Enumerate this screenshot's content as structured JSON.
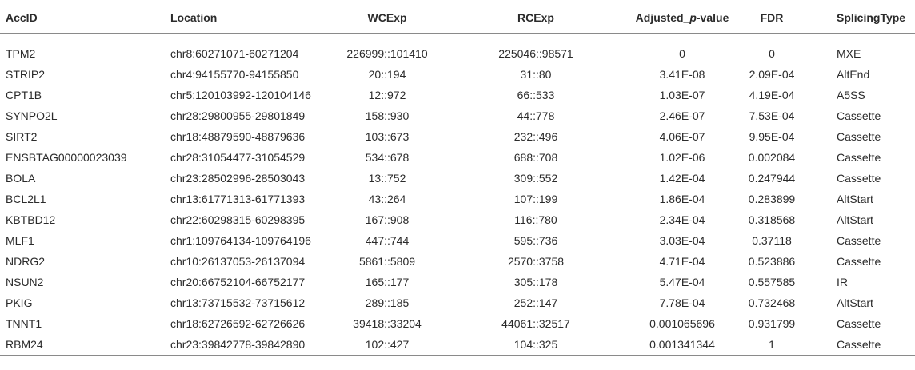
{
  "table": {
    "headers": [
      "AccID",
      "Location",
      "WCExp",
      "RCExp",
      [
        "Adjusted_",
        "p",
        "-value"
      ],
      "FDR",
      "SplicingType"
    ],
    "rows": [
      [
        "TPM2",
        "chr8:60271071-60271204",
        "226999::101410",
        "225046::98571",
        "0",
        "0",
        "MXE"
      ],
      [
        "STRIP2",
        "chr4:94155770-94155850",
        "20::194",
        "31::80",
        "3.41E-08",
        "2.09E-04",
        "AltEnd"
      ],
      [
        "CPT1B",
        "chr5:120103992-120104146",
        "12::972",
        "66::533",
        "1.03E-07",
        "4.19E-04",
        "A5SS"
      ],
      [
        "SYNPO2L",
        "chr28:29800955-29801849",
        "158::930",
        "44::778",
        "2.46E-07",
        "7.53E-04",
        "Cassette"
      ],
      [
        "SIRT2",
        "chr18:48879590-48879636",
        "103::673",
        "232::496",
        "4.06E-07",
        "9.95E-04",
        "Cassette"
      ],
      [
        "ENSBTAG00000023039",
        "chr28:31054477-31054529",
        "534::678",
        "688::708",
        "1.02E-06",
        "0.002084",
        "Cassette"
      ],
      [
        "BOLA",
        "chr23:28502996-28503043",
        "13::752",
        "309::552",
        "1.42E-04",
        "0.247944",
        "Cassette"
      ],
      [
        "BCL2L1",
        "chr13:61771313-61771393",
        "43::264",
        "107::199",
        "1.86E-04",
        "0.283899",
        "AltStart"
      ],
      [
        "KBTBD12",
        "chr22:60298315-60298395",
        "167::908",
        "116::780",
        "2.34E-04",
        "0.318568",
        "AltStart"
      ],
      [
        "MLF1",
        "chr1:109764134-109764196",
        "447::744",
        "595::736",
        "3.03E-04",
        "0.37118",
        "Cassette"
      ],
      [
        "NDRG2",
        "chr10:26137053-26137094",
        "5861::5809",
        "2570::3758",
        "4.71E-04",
        "0.523886",
        "Cassette"
      ],
      [
        "NSUN2",
        "chr20:66752104-66752177",
        "165::177",
        "305::178",
        "5.47E-04",
        "0.557585",
        "IR"
      ],
      [
        "PKIG",
        "chr13:73715532-73715612",
        "289::185",
        "252::147",
        "7.78E-04",
        "0.732468",
        "AltStart"
      ],
      [
        "TNNT1",
        "chr18:62726592-62726626",
        "39418::33204",
        "44061::32517",
        "0.001065696",
        "0.931799",
        "Cassette"
      ],
      [
        "RBM24",
        "chr23:39842778-39842890",
        "102::427",
        "104::325",
        "0.001341344",
        "1",
        "Cassette"
      ]
    ]
  }
}
